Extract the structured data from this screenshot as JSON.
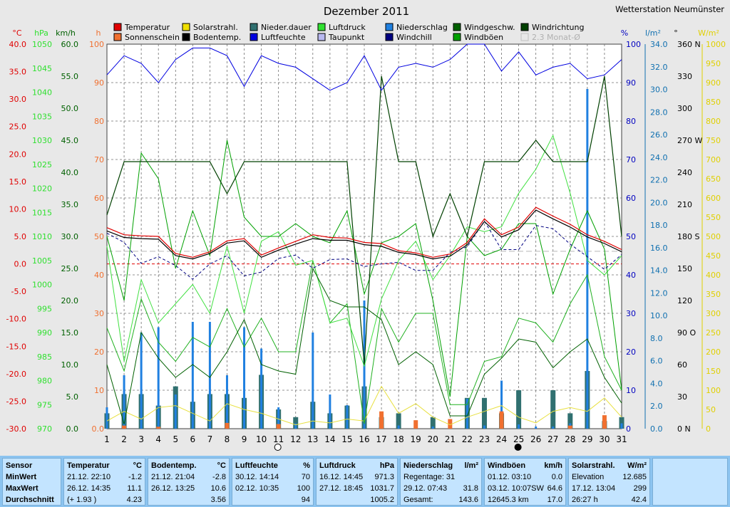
{
  "header": {
    "title": "Dezember 2011",
    "station": "Wetterstation Neumünster"
  },
  "legend": [
    {
      "label": "Temperatur",
      "color": "#e00000"
    },
    {
      "label": "Sonnenschein",
      "color": "#f07030"
    },
    {
      "label": "Solarstrahl.",
      "color": "#f0e000"
    },
    {
      "label": "Bodentemp.",
      "color": "#000000"
    },
    {
      "label": "Nieder.dauer",
      "color": "#307070"
    },
    {
      "label": "Luftfeuchte",
      "color": "#0000e0"
    },
    {
      "label": "Luftdruck",
      "color": "#30e030"
    },
    {
      "label": "Taupunkt",
      "color": "#b8b8f0"
    },
    {
      "label": "Niederschlag",
      "color": "#2080e0"
    },
    {
      "label": "Windchill",
      "color": "#000080"
    },
    {
      "label": "Windgeschw.",
      "color": "#006000"
    },
    {
      "label": "Windböen",
      "color": "#00a000"
    },
    {
      "label": "Windrichtung",
      "color": "#004000"
    },
    {
      "label": "2.3 Monat-Ø",
      "color": "#c0c0c0"
    }
  ],
  "axes": {
    "temp": {
      "unit": "°C",
      "ticks": [
        "40.0",
        "35.0",
        "30.0",
        "25.0",
        "20.0",
        "15.0",
        "10.0",
        "5.0",
        "0.0",
        "-5.0",
        "-10.0",
        "-15.0",
        "-20.0",
        "-25.0",
        "-30.0"
      ],
      "color": "#e00000"
    },
    "pressure": {
      "unit": "hPa",
      "ticks": [
        "1050",
        "1045",
        "1040",
        "1035",
        "1030",
        "1025",
        "1020",
        "1015",
        "1010",
        "1005",
        "1000",
        "995",
        "990",
        "985",
        "980",
        "975",
        "970"
      ],
      "color": "#30e030"
    },
    "wind": {
      "unit": "km/h",
      "ticks": [
        "60.0",
        "55.0",
        "50.0",
        "45.0",
        "40.0",
        "35.0",
        "30.0",
        "25.0",
        "20.0",
        "15.0",
        "10.0",
        "5.0",
        "0.0"
      ],
      "color": "#006000"
    },
    "hours": {
      "unit": "h",
      "ticks": [
        "100",
        "90",
        "80",
        "70",
        "60",
        "50",
        "40",
        "30",
        "20",
        "10",
        "0.0"
      ],
      "color": "#f07030"
    },
    "humidity": {
      "unit": "%",
      "ticks": [
        "100",
        "90",
        "80",
        "70",
        "60",
        "50",
        "40",
        "30",
        "20",
        "10",
        "0"
      ],
      "color": "#0000c0"
    },
    "rain": {
      "unit": "l/m²",
      "ticks": [
        "34.0",
        "32.0",
        "30.0",
        "28.0",
        "26.0",
        "24.0",
        "22.0",
        "20.0",
        "18.0",
        "16.0",
        "14.0",
        "12.0",
        "10.0",
        "8.0",
        "6.0",
        "4.0",
        "2.0",
        "0.0"
      ],
      "color": "#1070b0"
    },
    "direction": {
      "unit": "°",
      "ticks": [
        "360 N",
        "330",
        "300",
        "270 W",
        "240",
        "210",
        "180 S",
        "150",
        "120",
        "90 O",
        "60",
        "30",
        "0 N"
      ],
      "color": "#000000"
    },
    "solar": {
      "unit": "W/m²",
      "ticks": [
        "1000",
        "950",
        "900",
        "850",
        "800",
        "750",
        "700",
        "650",
        "600",
        "550",
        "500",
        "450",
        "400",
        "350",
        "300",
        "250",
        "200",
        "150",
        "100",
        "50",
        "0"
      ],
      "color": "#e0d000"
    },
    "days": [
      "1",
      "2",
      "3",
      "4",
      "5",
      "6",
      "7",
      "8",
      "9",
      "10",
      "11",
      "12",
      "13",
      "14",
      "15",
      "16",
      "17",
      "18",
      "19",
      "20",
      "21",
      "22",
      "23",
      "24",
      "25",
      "26",
      "27",
      "28",
      "29",
      "30",
      "31"
    ]
  },
  "chart_data": {
    "type": "line",
    "title": "Dezember 2011",
    "x": [
      1,
      2,
      3,
      4,
      5,
      6,
      7,
      8,
      9,
      10,
      11,
      12,
      13,
      14,
      15,
      16,
      17,
      18,
      19,
      20,
      21,
      22,
      23,
      24,
      25,
      26,
      27,
      28,
      29,
      30,
      31
    ],
    "temp_range": [
      -30,
      40
    ],
    "series": [
      {
        "name": "Temperatur",
        "unit": "°C",
        "color": "#e00000",
        "values": [
          6.6,
          5.3,
          5.1,
          5.0,
          1.9,
          1.2,
          2.2,
          4.2,
          4.6,
          1.6,
          2.9,
          4.1,
          5.3,
          4.8,
          4.7,
          3.9,
          3.7,
          2.4,
          2.0,
          1.2,
          1.8,
          3.9,
          8.2,
          5.3,
          6.7,
          10.3,
          8.7,
          7.2,
          5.3,
          4.1,
          2.6
        ]
      },
      {
        "name": "Bodentemp.",
        "unit": "°C",
        "color": "#000000",
        "values": [
          6.0,
          4.8,
          4.6,
          4.5,
          1.5,
          0.9,
          1.9,
          3.8,
          4.2,
          1.2,
          2.5,
          3.6,
          4.6,
          4.3,
          4.3,
          3.5,
          3.2,
          2.1,
          1.7,
          0.9,
          1.4,
          3.5,
          7.7,
          4.9,
          6.2,
          9.8,
          8.2,
          6.7,
          4.9,
          3.7,
          2.2
        ]
      },
      {
        "name": "Windchill",
        "unit": "°C",
        "color": "#000080",
        "values": [
          5.6,
          3.9,
          0.1,
          1.3,
          -0.3,
          -2.8,
          0.0,
          1.5,
          -2.2,
          -1.5,
          1.0,
          1.6,
          -0.8,
          0.8,
          0.9,
          -0.5,
          0.0,
          0.3,
          -1.2,
          -1.2,
          2.1,
          3.1,
          7.8,
          2.6,
          2.6,
          7.0,
          6.4,
          3.6,
          1.3,
          -1.0,
          1.7
        ]
      },
      {
        "name": "Luftdruck",
        "unit": "hPa",
        "color": "#30e030",
        "values": [
          1008,
          984,
          1001,
          992,
          996,
          1000,
          994,
          1008,
          994,
          1009,
          1011,
          1004,
          1005,
          992,
          993,
          983,
          997,
          1005,
          1009,
          1001,
          1006,
          1012,
          1011,
          1012,
          1019,
          1024,
          1031,
          1019,
          1005,
          1002,
          1006
        ]
      },
      {
        "name": "Luftdruck min",
        "unit": "hPa",
        "color": "#20b020",
        "values": [
          991,
          982,
          997,
          988,
          984,
          989,
          987,
          995,
          987,
          993,
          986,
          986,
          1005,
          992,
          996,
          971,
          995,
          988,
          994,
          994,
          975,
          975,
          984,
          985,
          993,
          992,
          988,
          996,
          1002,
          985,
          978
        ]
      },
      {
        "name": "Luftfeuchte",
        "unit": "%",
        "color": "#0000e0",
        "values": [
          92,
          97,
          95,
          90,
          96,
          99,
          99,
          97,
          89,
          97,
          95,
          94,
          91,
          88,
          90,
          97,
          88,
          94,
          95,
          94,
          96,
          100,
          100,
          93,
          98,
          92,
          94,
          95,
          91,
          92,
          96
        ]
      },
      {
        "name": "Windgeschw.",
        "unit": "km/h",
        "color": "#006000",
        "values": [
          10.0,
          0.7,
          15.0,
          11.0,
          8.0,
          10.0,
          8.0,
          12.0,
          17.0,
          10.0,
          9.0,
          8.5,
          25.0,
          20.0,
          19.0,
          19.0,
          17.0,
          10.0,
          12.0,
          10.0,
          2.0,
          2.0,
          8.5,
          11.0,
          14.0,
          13.5,
          9.5,
          12.0,
          14.0,
          8.0,
          4.0
        ]
      },
      {
        "name": "Windböen",
        "unit": "km/h",
        "color": "#00a000",
        "values": [
          30.0,
          20.0,
          43.0,
          39.0,
          25.0,
          34.0,
          27.0,
          45.0,
          33.0,
          30.0,
          30.0,
          32.0,
          30.0,
          29.0,
          34.0,
          21.0,
          29.0,
          30.0,
          32.0,
          20.0,
          5.0,
          30.0,
          27.0,
          28.0,
          32.0,
          32.0,
          21.0,
          28.0,
          34.0,
          28.0,
          6.0
        ]
      },
      {
        "name": "Windrichtung",
        "unit": "°",
        "color": "#004000",
        "values": [
          200,
          250,
          250,
          250,
          250,
          250,
          250,
          220,
          250,
          250,
          250,
          250,
          250,
          250,
          250,
          60,
          330,
          250,
          250,
          180,
          220,
          180,
          250,
          250,
          250,
          270,
          250,
          250,
          250,
          330,
          180
        ]
      },
      {
        "name": "Niederschlag",
        "unit": "l/m²",
        "color": "#2080e0",
        "values": [
          2.0,
          5.0,
          9.0,
          9.5,
          3.2,
          10.0,
          10.0,
          5.0,
          9.5,
          7.5,
          2.0,
          0.5,
          9.0,
          3.2,
          2.2,
          12.0,
          0.6,
          0.3,
          0.4,
          0.2,
          0.0,
          2.8,
          0.3,
          4.5,
          0.4,
          0.2,
          0.2,
          0.5,
          31.8,
          0.3,
          0.5
        ]
      },
      {
        "name": "Nieder.dauer",
        "unit": "h",
        "color": "#307070",
        "values": [
          4,
          9,
          9,
          6,
          11,
          7,
          9,
          9,
          8,
          14,
          5,
          3,
          7,
          4,
          6,
          11,
          3,
          4,
          0,
          3,
          0,
          8,
          8,
          4,
          10,
          0,
          10,
          4,
          15,
          2,
          3
        ]
      },
      {
        "name": "Sonnenschein",
        "unit": "h",
        "color": "#f07030",
        "values": [
          0,
          0.8,
          0,
          0.5,
          0,
          0,
          0,
          1.5,
          0,
          0,
          1.2,
          0,
          0,
          0,
          0,
          0,
          4.5,
          0,
          2.2,
          0,
          2.5,
          0,
          0,
          4.5,
          0,
          0,
          0,
          0.8,
          0,
          3.5,
          0
        ]
      },
      {
        "name": "Solarstrahl.",
        "unit": "W/m²",
        "color": "#f0e000",
        "values": [
          20,
          45,
          25,
          55,
          60,
          40,
          20,
          65,
          50,
          40,
          25,
          10,
          20,
          15,
          25,
          20,
          110,
          40,
          65,
          30,
          10,
          30,
          45,
          60,
          30,
          15,
          45,
          55,
          45,
          80,
          30
        ]
      }
    ],
    "reference_lines": [
      {
        "name": "2.3 Monat-Ø",
        "unit": "°C",
        "value": 2.3
      },
      {
        "name": "0 °C",
        "unit": "°C",
        "value": 0
      }
    ],
    "moon_phases": [
      {
        "day": 11,
        "phase": "full"
      },
      {
        "day": 25,
        "phase": "new"
      }
    ]
  },
  "stats": {
    "temperature": {
      "sensor": "Temperatur",
      "unit": "°C",
      "min_time": "21.12.  22:10",
      "min": "-1.2",
      "max_time": "26.12.  14:35",
      "max": "11.1",
      "avg_note": "(+ 1.93 )",
      "avg": "4.23"
    },
    "ground": {
      "sensor": "Bodentemp.",
      "unit": "°C",
      "min_time": "21.12.  21:04",
      "min": "-2.8",
      "max_time": "26.12.  13:25",
      "max": "10.6",
      "avg": "3.56"
    },
    "humidity": {
      "sensor": "Luftfeuchte",
      "unit": "%",
      "min_time": "30.12.  14:14",
      "min": "70",
      "max_time": "02.12.  10:35",
      "max": "100",
      "avg": "94"
    },
    "pressure": {
      "sensor": "Luftdruck",
      "unit": "hPa",
      "min_time": "16.12.  14:45",
      "min": "971.3",
      "max_time": "27.12.  18:45",
      "max": "1031.7",
      "avg": "1005.2"
    },
    "rain": {
      "sensor": "Niederschlag",
      "unit": "l/m²",
      "row1": "Regentage: 31",
      "row2_time": "29.12.  07:43",
      "row2": "31.8",
      "row3_label": "Gesamt:",
      "row3": "143.6"
    },
    "wind": {
      "sensor": "Windböen",
      "unit": "km/h",
      "min_time": "01.12.  03:10",
      "min": "0.0",
      "max_time": "03.12.  10:07SW",
      "max": "64.6",
      "avg_time": "12645.3 km",
      "avg": "17.0"
    },
    "solar": {
      "sensor": "Solarstrahl.",
      "unit": "W/m²",
      "row1_label": "Elevation",
      "row1": "12.685",
      "row2_time": "17.12.  13:04",
      "row2": "299",
      "row3_label": "26:27 h",
      "row3": "42.4"
    },
    "rowlabels": {
      "sensor": "Sensor",
      "min": "MinWert",
      "max": "MaxWert",
      "avg": "Durchschnitt"
    }
  }
}
